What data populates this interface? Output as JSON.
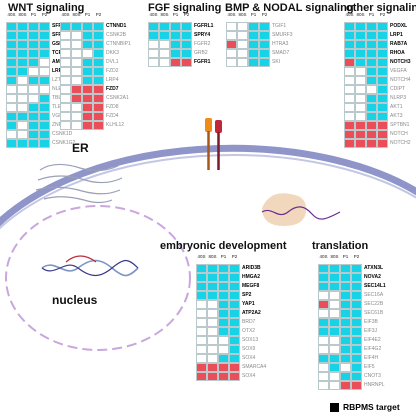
{
  "column_headers": [
    "40S",
    "80S",
    "P1",
    "P2"
  ],
  "panels": {
    "wnt_title": "WNT signaling",
    "fgf_title": "FGF signaling",
    "bmp_title": "BMP & NODAL signaling",
    "other_title": "other signaling",
    "embryonic_title": "embryonic development",
    "translation_title": "translation"
  },
  "organelles": {
    "er": "ER",
    "nucleus": "nucleus"
  },
  "legend": {
    "label": "RBPMS target"
  },
  "colors": {
    "enriched": "#18d2e6",
    "depleted": "#ea4e58",
    "empty": "#ffffff",
    "membrane": "#8f95c9",
    "organelle": "#c9a7de"
  },
  "heatmaps": [
    {
      "id": "wnt-a",
      "genes": [
        {
          "name": "SFRP1",
          "target": true,
          "cells": "cccc"
        },
        {
          "name": "SFRP2",
          "target": true,
          "cells": "cccc"
        },
        {
          "name": "GSK3A",
          "target": true,
          "cells": "cccc"
        },
        {
          "name": "TCF7L1",
          "target": true,
          "cells": "cccc"
        },
        {
          "name": "AMER1",
          "target": true,
          "cells": "cccw"
        },
        {
          "name": "LRP1",
          "target": true,
          "cells": "ccww"
        },
        {
          "name": "LZTS2",
          "target": false,
          "cells": "cwcc"
        },
        {
          "name": "NLE1",
          "target": false,
          "cells": "wwww"
        },
        {
          "name": "TBL1X",
          "target": false,
          "cells": "wwwc"
        },
        {
          "name": "TLE6",
          "target": false,
          "cells": "wwcc"
        },
        {
          "name": "VGLL4",
          "target": false,
          "cells": "cccc"
        },
        {
          "name": "ZNRF3",
          "target": false,
          "cells": "cwcc"
        },
        {
          "name": "CSNK1D",
          "target": false,
          "cells": "wwcc"
        },
        {
          "name": "CSNK1G2",
          "target": false,
          "cells": "cccc"
        }
      ]
    },
    {
      "id": "wnt-b",
      "genes": [
        {
          "name": "CTNND1",
          "target": true,
          "cells": "cccc"
        },
        {
          "name": "CSNK2B",
          "target": false,
          "cells": "wwcc"
        },
        {
          "name": "CTNNBIP1",
          "target": false,
          "cells": "wwcc"
        },
        {
          "name": "DKK3",
          "target": false,
          "cells": "wwwc"
        },
        {
          "name": "DVL1",
          "target": false,
          "cells": "wwcc"
        },
        {
          "name": "FZD2",
          "target": false,
          "cells": "wwcc"
        },
        {
          "name": "LRP4",
          "target": false,
          "cells": "wwcc"
        },
        {
          "name": "FZD7",
          "target": true,
          "cells": "wrrr"
        },
        {
          "name": "CSNK2A1",
          "target": false,
          "cells": "wrrr"
        },
        {
          "name": "FZD8",
          "target": false,
          "cells": "wwrr"
        },
        {
          "name": "FZD4",
          "target": false,
          "cells": "wwrr"
        },
        {
          "name": "KLHL12",
          "target": false,
          "cells": "wwrr"
        }
      ]
    },
    {
      "id": "fgf",
      "genes": [
        {
          "name": "FGFRL1",
          "target": true,
          "cells": "cccc"
        },
        {
          "name": "SPRY4",
          "target": true,
          "cells": "cccc"
        },
        {
          "name": "FGFR2",
          "target": false,
          "cells": "wwcc"
        },
        {
          "name": "GRB2",
          "target": false,
          "cells": "wwcc"
        },
        {
          "name": "FGFR1",
          "target": true,
          "cells": "wwrr"
        }
      ]
    },
    {
      "id": "bmp",
      "genes": [
        {
          "name": "TGIF1",
          "target": false,
          "cells": "wwcc"
        },
        {
          "name": "SMURF3",
          "target": false,
          "cells": "wwcc"
        },
        {
          "name": "HTRA3",
          "target": false,
          "cells": "rwcc"
        },
        {
          "name": "SMAD7",
          "target": false,
          "cells": "wwcc"
        },
        {
          "name": "SKI",
          "target": false,
          "cells": "wwcc"
        }
      ]
    },
    {
      "id": "other",
      "genes": [
        {
          "name": "PODXL",
          "target": true,
          "cells": "cccc"
        },
        {
          "name": "LRP1",
          "target": true,
          "cells": "cccc"
        },
        {
          "name": "RAB7A",
          "target": true,
          "cells": "cccc"
        },
        {
          "name": "RHOA",
          "target": true,
          "cells": "cccc"
        },
        {
          "name": "NOTCH3",
          "target": true,
          "cells": "rccc"
        },
        {
          "name": "VEGFA",
          "target": false,
          "cells": "wwcc"
        },
        {
          "name": "NOTCH4",
          "target": false,
          "cells": "wwcc"
        },
        {
          "name": "CDIPT",
          "target": false,
          "cells": "wwwc"
        },
        {
          "name": "NLRP3",
          "target": false,
          "cells": "wwcc"
        },
        {
          "name": "AKT1",
          "target": false,
          "cells": "wwcc"
        },
        {
          "name": "AKT3",
          "target": false,
          "cells": "wwcc"
        },
        {
          "name": "SPTBN1",
          "target": false,
          "cells": "rrrr"
        },
        {
          "name": "NOTCH",
          "target": false,
          "cells": "rrrr"
        },
        {
          "name": "NOTCH2",
          "target": false,
          "cells": "rrrr"
        }
      ]
    },
    {
      "id": "embryonic",
      "genes": [
        {
          "name": "ARID3B",
          "target": true,
          "cells": "cccc"
        },
        {
          "name": "HMGA2",
          "target": true,
          "cells": "cccc"
        },
        {
          "name": "MEGF8",
          "target": true,
          "cells": "cccc"
        },
        {
          "name": "SP2",
          "target": true,
          "cells": "cccc"
        },
        {
          "name": "YAP1",
          "target": true,
          "cells": "wwcc"
        },
        {
          "name": "ATP2A2",
          "target": true,
          "cells": "wwcc"
        },
        {
          "name": "BRD7",
          "target": false,
          "cells": "wwcc"
        },
        {
          "name": "OTX2",
          "target": false,
          "cells": "wwcc"
        },
        {
          "name": "SOX13",
          "target": false,
          "cells": "wwwc"
        },
        {
          "name": "SOX9",
          "target": false,
          "cells": "wwwc"
        },
        {
          "name": "SOX4",
          "target": false,
          "cells": "wwcc"
        },
        {
          "name": "SMARCA4",
          "target": false,
          "cells": "rrrr"
        },
        {
          "name": "SOX4",
          "target": false,
          "cells": "rrrr"
        }
      ]
    },
    {
      "id": "translation",
      "genes": [
        {
          "name": "ATXN3L",
          "target": true,
          "cells": "cccc"
        },
        {
          "name": "NOVA2",
          "target": true,
          "cells": "cccc"
        },
        {
          "name": "SEC14L1",
          "target": true,
          "cells": "cccc"
        },
        {
          "name": "SEC16A",
          "target": false,
          "cells": "wwcc"
        },
        {
          "name": "SEC22B",
          "target": false,
          "cells": "rwcc"
        },
        {
          "name": "SEC61B",
          "target": false,
          "cells": "wwcc"
        },
        {
          "name": "EIF3B",
          "target": false,
          "cells": "cccc"
        },
        {
          "name": "EIF3J",
          "target": false,
          "cells": "cccc"
        },
        {
          "name": "EIF4E2",
          "target": false,
          "cells": "wwcc"
        },
        {
          "name": "EIF4G2",
          "target": false,
          "cells": "wwcc"
        },
        {
          "name": "EIF4H",
          "target": false,
          "cells": "cccc"
        },
        {
          "name": "EIF5",
          "target": false,
          "cells": "wcwc"
        },
        {
          "name": "CNOT3",
          "target": false,
          "cells": "wwcc"
        },
        {
          "name": "HNRNPL",
          "target": false,
          "cells": "wwrr"
        }
      ]
    }
  ]
}
